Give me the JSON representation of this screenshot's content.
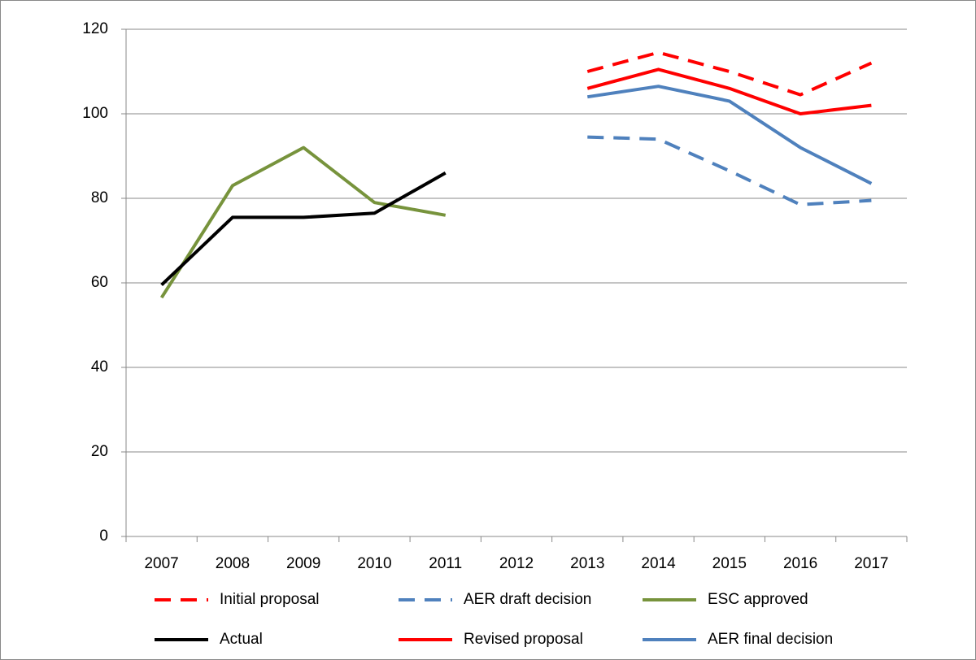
{
  "chart_data": {
    "type": "line",
    "categories": [
      "2007",
      "2008",
      "2009",
      "2010",
      "2011",
      "2012",
      "2013",
      "2014",
      "2015",
      "2016",
      "2017"
    ],
    "ylim": [
      0,
      120
    ],
    "yticks": [
      0,
      20,
      40,
      60,
      80,
      100,
      120
    ],
    "grid": true,
    "series": [
      {
        "name": "Initial proposal",
        "color": "#ff0000",
        "dashed": true,
        "values": [
          null,
          null,
          null,
          null,
          null,
          null,
          110,
          114.5,
          110,
          104.5,
          112
        ]
      },
      {
        "name": "AER draft decision",
        "color": "#4f81bd",
        "dashed": true,
        "values": [
          null,
          null,
          null,
          null,
          null,
          null,
          94.5,
          94,
          86.5,
          78.5,
          79.5
        ]
      },
      {
        "name": "ESC approved",
        "color": "#77933c",
        "dashed": false,
        "values": [
          56.5,
          83,
          92,
          79,
          76,
          null,
          null,
          null,
          null,
          null,
          null
        ]
      },
      {
        "name": "Actual",
        "color": "#000000",
        "dashed": false,
        "values": [
          59.5,
          75.5,
          75.5,
          76.5,
          86,
          null,
          null,
          null,
          null,
          null,
          null
        ]
      },
      {
        "name": "Revised proposal",
        "color": "#ff0000",
        "dashed": false,
        "values": [
          null,
          null,
          null,
          null,
          null,
          null,
          106,
          110.5,
          106,
          100,
          102
        ]
      },
      {
        "name": "AER final decision",
        "color": "#4f81bd",
        "dashed": false,
        "values": [
          null,
          null,
          null,
          null,
          null,
          null,
          104,
          106.5,
          103,
          92,
          83.5
        ]
      }
    ]
  }
}
